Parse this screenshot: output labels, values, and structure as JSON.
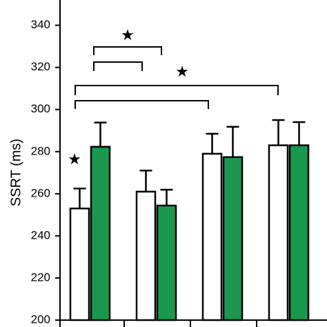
{
  "chart_data": {
    "type": "bar",
    "y_label": "SSRT (ms)",
    "categories": [
      null,
      null,
      null,
      null
    ],
    "series": [
      {
        "color": "#ffffff",
        "values": [
          253,
          261,
          279,
          283
        ],
        "errors": [
          9.5,
          10,
          9.5,
          12
        ]
      },
      {
        "color": "#1a9850",
        "values": [
          282.3,
          254.4,
          277.4,
          283
        ],
        "errors": [
          11.5,
          7.5,
          14.4,
          11
        ]
      }
    ],
    "ylim": [
      200,
      352
    ],
    "yticks": [
      200,
      220,
      240,
      260,
      280,
      300,
      320,
      340
    ],
    "annotations": [
      "★",
      "★",
      "★"
    ]
  }
}
